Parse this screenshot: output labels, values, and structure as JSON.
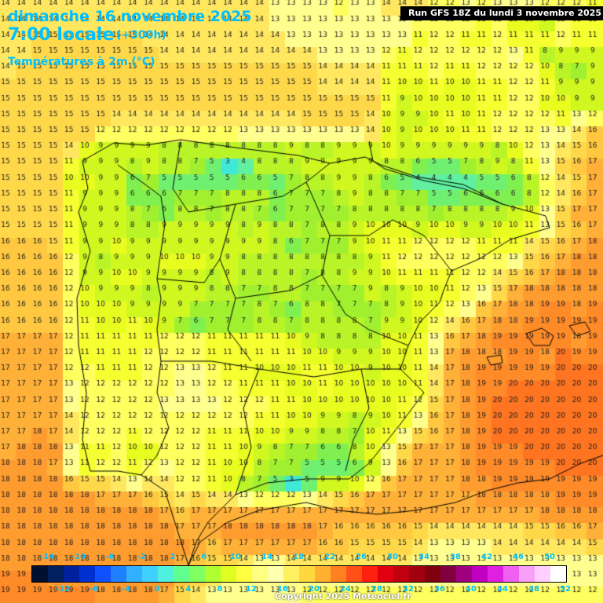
{
  "header": {
    "date": "dimanche 16 novembre 2025",
    "time": "7:00 locale",
    "lead": "(+300h)",
    "subtitle": "Températures à 2m (°C)",
    "run": "Run GFS 18Z du lundi 3 novembre 2025"
  },
  "legend": {
    "top_labels": [
      "-14",
      "-10",
      "-6",
      "-2",
      "2",
      "6",
      "10",
      "14",
      "18",
      "22",
      "26",
      "30",
      "34",
      "38",
      "42",
      "46",
      "50"
    ],
    "bottom_labels": [
      "-12",
      "-8",
      "-4",
      "0",
      "4",
      "8",
      "12",
      "16",
      "20",
      "24",
      "28",
      "32",
      "36",
      "40",
      "44",
      "48",
      "52"
    ],
    "colors": [
      "#001030",
      "#002060",
      "#0020a0",
      "#0030d0",
      "#1050ff",
      "#2080ff",
      "#30b0ff",
      "#40d0ff",
      "#50f0e0",
      "#60ff90",
      "#80ff60",
      "#b0ff30",
      "#e0ff20",
      "#ffff40",
      "#ffff80",
      "#ffffb0",
      "#fff060",
      "#ffd840",
      "#ffb030",
      "#ff8020",
      "#ff5018",
      "#ff2010",
      "#e00010",
      "#c00010",
      "#a00010",
      "#800010",
      "#800040",
      "#a00080",
      "#c000c0",
      "#e020e0",
      "#f060f0",
      "#f8a0f8",
      "#ffd0ff",
      "#ffffff"
    ]
  },
  "copyright": "Copyright 2025 Meteociel.fr",
  "map_data": {
    "rows": [
      "14 14 14 14 14 14 14 14 14 14 14 14 14 14 14 14 14 13 13 13 13 12 13 13 14 14 14 12 12 13 12 13 13 13 12 12 12 11",
      "14 14 14 14 14 14 14 14 14 14 14 14 14 14 14 14 14 13 13 13 13 13 13 13 13 13 12 12 12 12 11 12 10 10 9 12 11 11",
      "14 14 15 15 15 15 15 15 15 14 14 14 14 14 14 14 14 14 13 13 13 13 13 13 13 13 11 12 12 11 11 12 11 11 11 12 11 11",
      "14 14 15 15 15 15 15 15 15 15 14 14 14 14 14 14 14 14 14 14 13 13 13 13 12 11 12 12 12 12 12 12 13 11 8 9 9 9",
      "14 15 15 15 15 15 15 15 15 15 15 15 15 15 15 15 15 15 15 15 14 14 14 14 11 11 11 12 11 11 12 12 12 12 10 8 7 9",
      "15 15 15 15 15 15 15 15 15 15 15 15 15 15 15 15 15 15 15 15 14 14 14 14 11 10 10 11 10 10 11 11 12 12 11 9 9 9",
      "15 15 15 15 15 15 15 15 15 15 15 15 15 15 15 15 15 15 15 15 15 15 15 15 11 9 10 10 10 10 11 11 12 12 10 10 9 9",
      "15 15 15 15 15 15 15 14 14 14 14 14 14 14 14 14 14 14 14 15 15 15 15 14 10 9 9 10 11 10 11 12 12 12 12 11 13 12",
      "15 15 15 15 15 15 12 12 12 12 12 12 12 12 12 13 13 13 13 13 13 13 13 14 10 9 10 10 10 11 11 12 12 12 13 13 14 16",
      "15 15 15 15 14 10 9 9 9 9 8 8 8 8 8 8 8 8 9 8 8 9 9 9 10 9 9 9 9 9 9 8 10 12 13 14 15 16",
      "15 15 15 15 11 9 9 9 8 9 8 8 7 5 3 4 8 8 8 9 9 9 9 9 8 8 6 5 5 7 8 9 8 11 13 15 16 17",
      "15 15 15 15 10 10 9 9 6 7 5 5 5 5 5 6 6 5 7 8 8 9 9 8 6 5 4 4 4 4 5 5 6 8 12 14 15 17",
      "15 15 15 15 11 9 9 9 6 6 6 7 7 7 8 8 8 6 7 7 7 8 9 8 8 7 7 5 5 6 6 6 6 8 12 14 16 17",
      "15 15 15 15 11 9 9 9 8 7 6 8 8 7 8 8 7 6 7 7 7 7 8 8 8 8 8 7 8 8 8 8 9 10 13 15 17 17",
      "15 15 15 15 11 9 9 9 8 8 9 9 9 9 9 8 9 8 8 7 8 8 9 10 10 10 9 10 10 9 9 10 10 11 13 15 16 17",
      "16 16 16 15 11 9 9 10 9 9 9 9 9 9 9 9 9 8 6 7 7 7 9 10 11 11 12 12 12 12 11 11 11 14 15 16 17 18",
      "16 16 16 16 12 9 8 9 9 9 10 10 10 9 9 8 8 8 8 8 8 8 8 9 11 12 12 12 12 12 12 12 13 15 16 17 18 18",
      "16 16 16 16 12 9 9 10 10 9 9 9 9 8 9 8 8 8 8 7 8 8 9 9 10 11 11 11 11 12 12 14 15 16 17 18 18 18",
      "16 16 16 16 12 10 9 9 9 8 9 9 9 8 8 7 7 8 8 7 7 7 7 9 8 9 10 10 11 12 13 15 17 18 18 18 18 18",
      "16 16 16 16 12 10 10 10 9 9 9 9 7 7 7 7 8 7 6 8 8 7 7 7 8 9 10 11 12 13 16 17 18 18 19 19 18 19",
      "16 16 16 16 12 11 10 10 11 10 9 7 6 7 7 7 8 8 7 8 8 8 8 7 9 9 10 12 14 16 17 18 18 19 19 19 19 19",
      "17 17 17 17 12 11 11 11 11 11 12 12 12 11 11 11 11 11 10 9 8 8 8 8 10 10 11 13 16 17 18 19 19 19 19 19 18 19",
      "17 17 17 17 12 11 11 11 11 12 12 12 12 11 11 11 11 11 11 10 10 9 9 9 10 10 11 13 17 18 18 18 19 19 18 20 19 19",
      "17 17 17 17 12 12 11 11 11 12 12 13 13 12 11 11 10 10 10 11 11 10 10 9 10 10 11 14 17 18 19 19 19 19 19 20 20 20",
      "17 17 17 17 13 12 12 12 12 12 12 13 13 12 12 11 11 11 10 10 11 10 10 10 10 10 11 14 17 18 19 19 20 20 20 20 20 20",
      "17 17 17 17 13 12 12 12 12 12 13 13 13 13 12 12 12 11 11 10 10 10 10 10 10 11 12 15 17 18 19 20 20 20 20 20 20 20",
      "17 17 17 17 14 12 12 12 12 12 12 12 12 12 12 12 11 11 10 10 9 9 8 9 10 11 13 16 17 18 19 20 20 20 20 20 20 20",
      "17 17 18 17 14 12 12 12 11 12 12 12 12 11 11 11 10 10 9 9 8 8 7 10 11 13 15 16 17 18 19 20 20 20 20 20 20 20",
      "17 18 18 18 13 11 11 12 10 10 12 12 12 11 11 10 9 8 7 7 6 6 8 10 13 15 17 17 17 18 19 19 19 20 20 20 20 20",
      "18 18 18 17 13 11 12 12 11 12 13 12 12 11 10 10 8 7 7 5 5 5 6 9 13 16 17 17 17 18 19 19 19 19 19 20 20 20",
      "18 18 18 18 16 15 15 14 13 14 14 12 12 11 10 8 7 5 3 5 9 9 10 12 16 17 17 17 17 18 18 19 19 19 19 19 19 19",
      "18 18 18 18 18 18 17 17 17 16 15 14 15 14 14 13 12 12 12 13 14 15 16 17 17 17 17 17 17 17 18 18 18 18 18 19 19 19",
      "18 18 18 18 18 18 18 18 18 18 17 16 17 17 17 17 17 17 17 17 17 17 17 17 17 17 17 17 17 17 17 17 17 17 18 18 18 18",
      "18 18 18 18 18 18 18 18 18 18 18 17 17 17 18 18 18 18 18 18 17 16 16 16 16 16 15 14 14 14 14 14 14 15 15 16 16 17",
      "18 18 18 18 18 18 18 18 18 18 18 18 17 16 17 17 17 17 17 17 16 16 15 15 15 15 14 13 13 13 13 14 14 14 14 14 14 15",
      "18 18 18 18 18 18 18 18 18 18 18 17 16 15 15 14 13 13 14 14 14 14 14 14 14 14 13 13 13 13 13 13 13 13 13 13 13 13",
      "19 19 19 18 18 18 18 18 18 18 18 16 15 14 13 13 13 13 13 13 13 13 13 13 13 13 13 13 13 13 13 13 13 13 13 13 13 13",
      "19 19 19 19 19 19 18 18 18 18 17 15 14 13 13 13 13 13 13 12 12 12 12 12 12 12 12 12 12 12 12 12 12 12 12 12 12 12"
    ]
  }
}
